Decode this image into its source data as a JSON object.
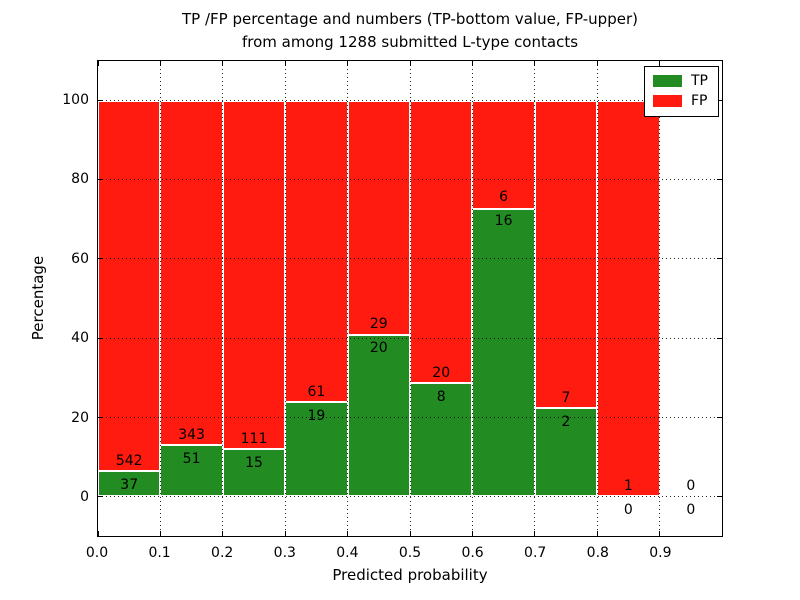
{
  "header": {
    "title_line1": "TP /FP percentage and numbers (TP-bottom value, FP-upper)",
    "title_line2": "from among 1288 submitted L-type contacts"
  },
  "chart_data": {
    "type": "bar",
    "stacked": true,
    "normalized_to_percent": true,
    "title": "TP /FP percentage and numbers (TP-bottom value, FP-upper)\nfrom among 1288 submitted L-type contacts",
    "total_submitted_contacts": 1288,
    "xlabel": "Predicted probability",
    "ylabel": "Percentage",
    "xlim": [
      0.0,
      1.0
    ],
    "ylim": [
      -10,
      110
    ],
    "grid": true,
    "bin_width": 0.1,
    "bin_edges": [
      0.0,
      0.1,
      0.2,
      0.3,
      0.4,
      0.5,
      0.6,
      0.7,
      0.8,
      0.9,
      1.0
    ],
    "xticks": [
      "0.0",
      "0.1",
      "0.2",
      "0.3",
      "0.4",
      "0.5",
      "0.6",
      "0.7",
      "0.8",
      "0.9"
    ],
    "yticks": [
      "0",
      "20",
      "40",
      "60",
      "80",
      "100"
    ],
    "ytick_values": [
      0,
      20,
      40,
      60,
      80,
      100
    ],
    "series": [
      {
        "name": "TP",
        "color": "#228b22",
        "values": [
          37,
          51,
          15,
          19,
          20,
          8,
          16,
          2,
          0,
          0
        ]
      },
      {
        "name": "FP",
        "color": "#ff1b10",
        "values": [
          542,
          343,
          111,
          61,
          29,
          20,
          6,
          7,
          1,
          0
        ]
      }
    ],
    "tp_percent_heights": [
      6.39,
      12.94,
      11.9,
      23.75,
      40.82,
      28.57,
      72.73,
      22.22,
      0.0,
      0.0
    ],
    "legend": {
      "position": "upper-right",
      "entries": [
        {
          "label": "TP",
          "color": "#228b22"
        },
        {
          "label": "FP",
          "color": "#ff1b10"
        }
      ]
    }
  },
  "colors": {
    "tp_green": "#228b22",
    "fp_red": "#ff1b10",
    "axis_black": "#000000",
    "background": "#ffffff"
  }
}
